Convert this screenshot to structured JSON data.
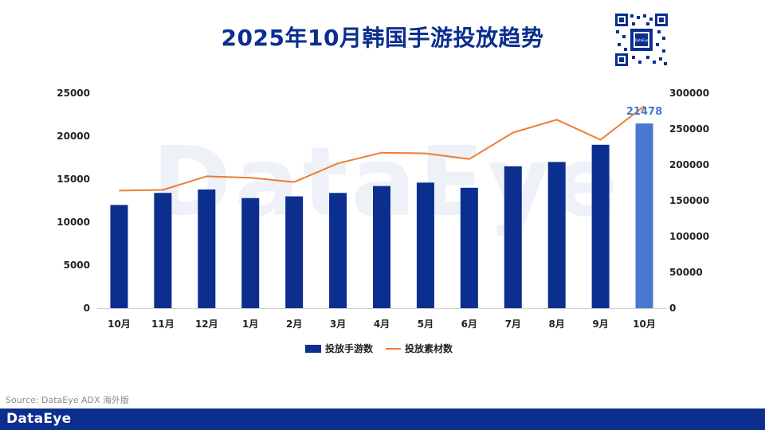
{
  "title": "2025年10月韩国手游投放趋势",
  "watermark_text": "DataEye",
  "source_text": "Source: DataEye ADX 海外版",
  "brand_text": "DataEye",
  "qr_label": "DataEye",
  "colors": {
    "title": "#0b2e8f",
    "bar": "#0b2e8f",
    "bar_highlight": "#4a78d0",
    "line": "#ed7d31",
    "footer": "#0b2e8f"
  },
  "chart_data": {
    "type": "bar",
    "title": "",
    "categories": [
      "10月",
      "11月",
      "12月",
      "1月",
      "2月",
      "3月",
      "4月",
      "5月",
      "6月",
      "7月",
      "8月",
      "9月",
      "10月"
    ],
    "series": [
      {
        "name": "投放手游数",
        "type": "bar",
        "axis": "left",
        "values": [
          12000,
          13400,
          13800,
          12800,
          13000,
          13400,
          14200,
          14600,
          14000,
          16500,
          17000,
          19000,
          21478
        ]
      },
      {
        "name": "投放素材数",
        "type": "line",
        "axis": "right",
        "values": [
          164000,
          165000,
          184000,
          182000,
          176000,
          202000,
          217000,
          216000,
          208000,
          245000,
          263000,
          235000,
          282000
        ]
      }
    ],
    "highlight_index": 12,
    "data_labels": [
      {
        "series": 0,
        "index": 12,
        "text": "21478"
      }
    ],
    "ylim_left": [
      0,
      25000
    ],
    "yticks_left": [
      "0",
      "5000",
      "10000",
      "15000",
      "20000",
      "25000"
    ],
    "ylim_right": [
      0,
      300000
    ],
    "yticks_right": [
      "0",
      "50000",
      "100000",
      "150000",
      "200000",
      "250000",
      "300000"
    ],
    "grid": false,
    "legend_position": "bottom"
  }
}
